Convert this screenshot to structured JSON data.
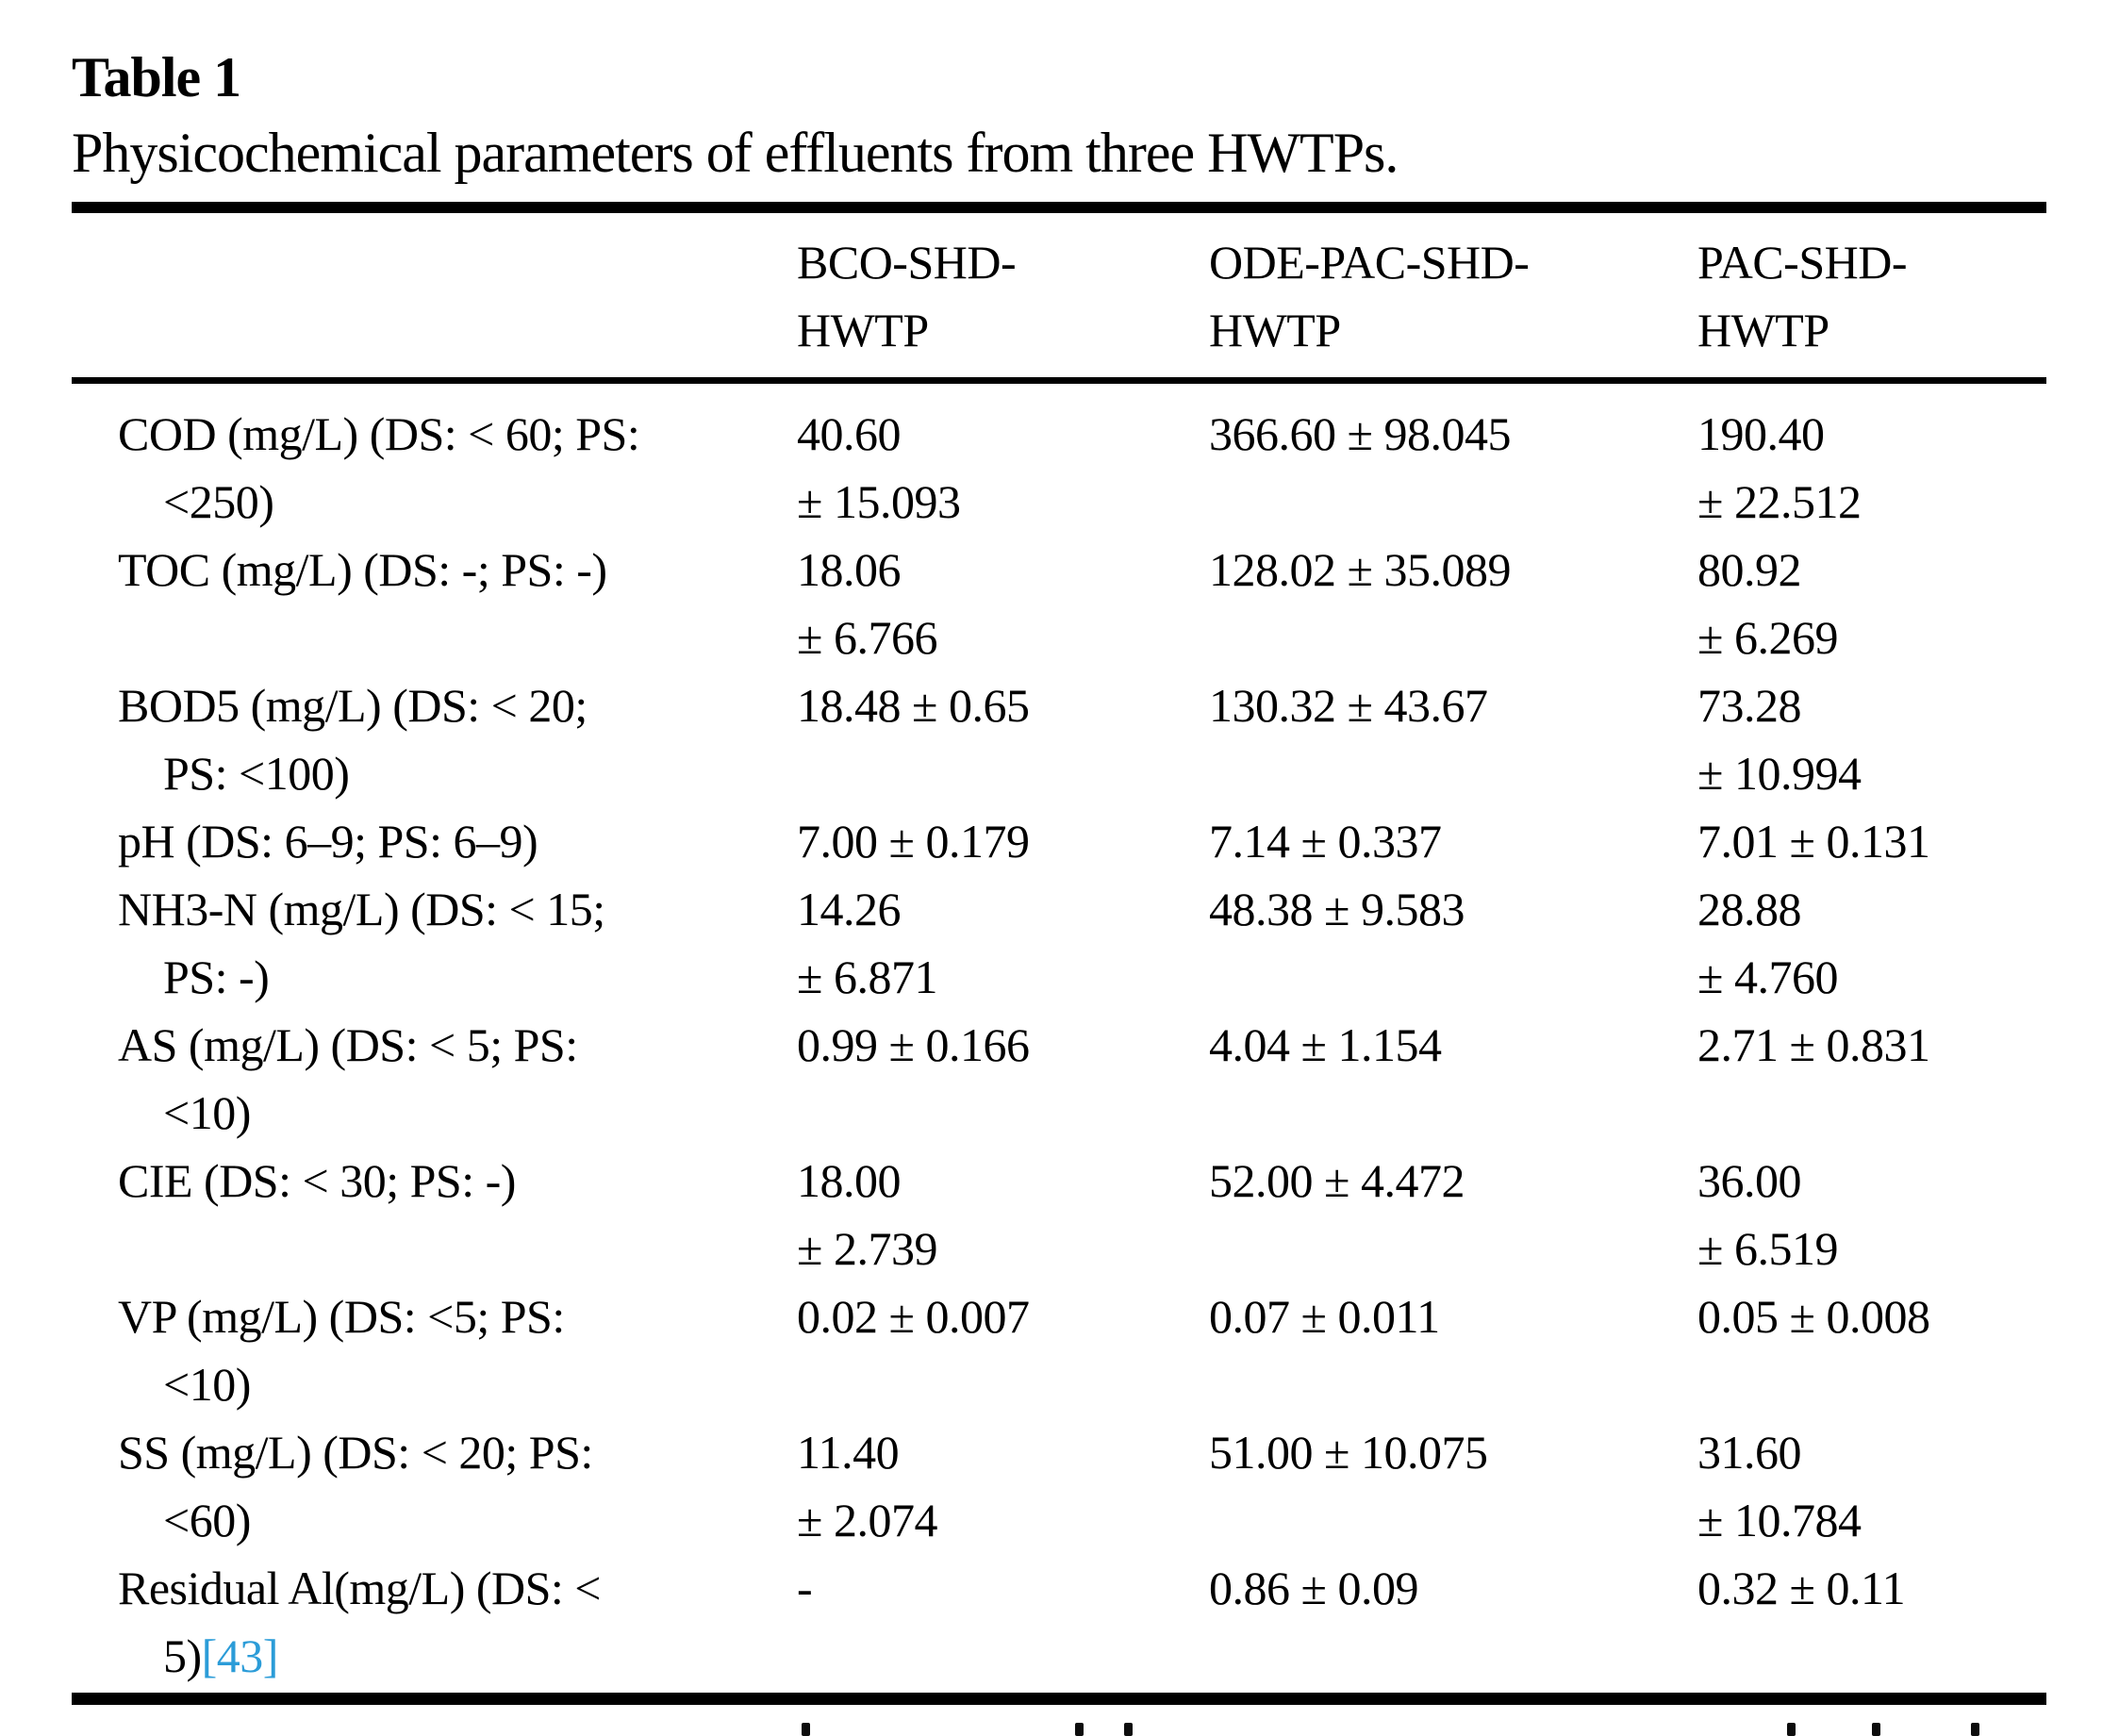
{
  "title": "Table 1",
  "caption": "Physicochemical parameters of effluents from three HWTPs.",
  "citation_color": "#2b9cd8",
  "header": {
    "columns": [
      {
        "id": "bco",
        "lines": [
          "BCO-SHD-",
          "HWTP"
        ]
      },
      {
        "id": "ode",
        "lines": [
          "ODE-PAC-SHD-",
          "HWTP"
        ]
      },
      {
        "id": "pac",
        "lines": [
          "PAC-SHD-",
          "HWTP"
        ]
      }
    ]
  },
  "rows": [
    {
      "param": [
        "COD (mg/L) (DS: < 60; PS:",
        "<250)"
      ],
      "bco": [
        "40.60",
        "± 15.093"
      ],
      "ode": [
        "366.60 ± 98.045"
      ],
      "pac": [
        "190.40",
        "± 22.512"
      ]
    },
    {
      "param": [
        "TOC (mg/L) (DS: -; PS: -)"
      ],
      "bco": [
        "18.06",
        "± 6.766"
      ],
      "ode": [
        "128.02 ± 35.089"
      ],
      "pac": [
        "80.92",
        "± 6.269"
      ]
    },
    {
      "param": [
        "BOD5 (mg/L) (DS: < 20;",
        "PS: <100)"
      ],
      "bco": [
        "18.48 ± 0.65"
      ],
      "ode": [
        "130.32 ± 43.67"
      ],
      "pac": [
        "73.28",
        "± 10.994"
      ]
    },
    {
      "param": [
        "pH (DS: 6–9; PS: 6–9)"
      ],
      "bco": [
        "7.00 ± 0.179"
      ],
      "ode": [
        "7.14 ± 0.337"
      ],
      "pac": [
        "7.01 ± 0.131"
      ]
    },
    {
      "param": [
        "NH3-N (mg/L) (DS: < 15;",
        "PS: -)"
      ],
      "bco": [
        "14.26",
        "± 6.871"
      ],
      "ode": [
        "48.38 ± 9.583"
      ],
      "pac": [
        "28.88",
        "± 4.760"
      ]
    },
    {
      "param": [
        "AS (mg/L) (DS: < 5; PS:",
        "<10)"
      ],
      "bco": [
        "0.99 ± 0.166"
      ],
      "ode": [
        "4.04 ± 1.154"
      ],
      "pac": [
        "2.71 ± 0.831"
      ]
    },
    {
      "param": [
        "CIE (DS: < 30; PS: -)"
      ],
      "bco": [
        "18.00",
        "± 2.739"
      ],
      "ode": [
        "52.00 ± 4.472"
      ],
      "pac": [
        "36.00",
        "± 6.519"
      ]
    },
    {
      "param": [
        "VP (mg/L) (DS: <5; PS:",
        "<10)"
      ],
      "bco": [
        "0.02 ± 0.007"
      ],
      "ode": [
        "0.07 ± 0.011"
      ],
      "pac": [
        "0.05 ± 0.008"
      ]
    },
    {
      "param": [
        "SS (mg/L) (DS: < 20; PS:",
        "<60)"
      ],
      "bco": [
        "11.40",
        "± 2.074"
      ],
      "ode": [
        "51.00 ± 10.075"
      ],
      "pac": [
        "31.60",
        "± 10.784"
      ]
    },
    {
      "param": [
        "Residual Al(mg/L) (DS: <",
        "5)"
      ],
      "param_citation": "[43]",
      "bco": [
        "-"
      ],
      "ode": [
        "0.86 ± 0.09"
      ],
      "pac": [
        "0.32 ± 0.11"
      ]
    }
  ],
  "bottom_cutoff_fragments_x": [
    850,
    1140,
    1192,
    1895,
    1985,
    2090
  ]
}
